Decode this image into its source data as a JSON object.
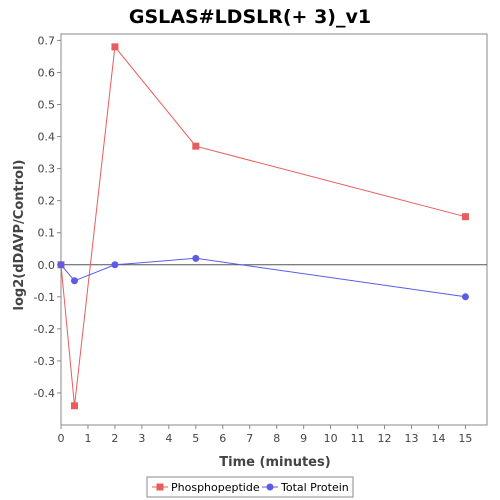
{
  "chart_data": {
    "type": "line",
    "title": "GSLAS#LDSLR(+ 3)_v1",
    "xlabel": "Time (minutes)",
    "ylabel": "log2(dDAVP/Control)",
    "xlim": [
      0,
      15.8
    ],
    "ylim": [
      -0.5,
      0.72
    ],
    "xticks": [
      0,
      1,
      2,
      3,
      4,
      5,
      6,
      7,
      8,
      9,
      10,
      11,
      12,
      13,
      14,
      15
    ],
    "yticks": [
      -0.4,
      -0.3,
      -0.2,
      -0.1,
      0.0,
      0.1,
      0.2,
      0.3,
      0.4,
      0.5,
      0.6,
      0.7
    ],
    "grid": false,
    "legend_position": "bottom",
    "series": [
      {
        "name": "Phosphopeptide",
        "color": "#e85c5c",
        "marker": "square",
        "x": [
          0,
          0.5,
          2,
          5,
          15
        ],
        "y": [
          0.0,
          -0.44,
          0.68,
          0.37,
          0.15
        ]
      },
      {
        "name": "Total Protein",
        "color": "#5b5be8",
        "marker": "circle",
        "x": [
          0,
          0.5,
          2,
          5,
          15
        ],
        "y": [
          0.0,
          -0.05,
          0.0,
          0.02,
          -0.1
        ]
      }
    ]
  }
}
